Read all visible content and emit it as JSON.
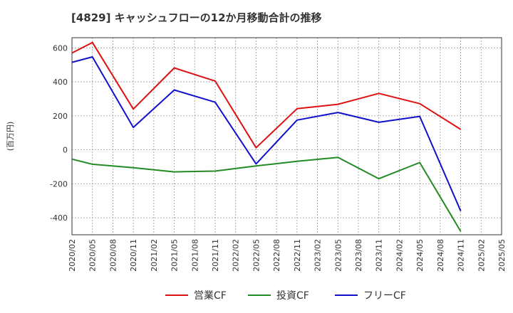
{
  "chart_data": {
    "type": "line",
    "title": "[4829]  キャッシュフローの12か月移動合計の推移",
    "ylabel": "(百万円)",
    "xlabel": "",
    "ylim": [
      -500,
      660
    ],
    "yticks": [
      -400,
      -200,
      0,
      200,
      400,
      600
    ],
    "x_ticks": [
      "2020/02",
      "2020/05",
      "2020/08",
      "2020/11",
      "2021/02",
      "2021/05",
      "2021/08",
      "2021/11",
      "2022/02",
      "2022/05",
      "2022/08",
      "2022/11",
      "2023/02",
      "2023/05",
      "2023/08",
      "2023/11",
      "2024/02",
      "2024/05",
      "2024/08",
      "2024/11",
      "2025/02",
      "2025/05"
    ],
    "grid": true,
    "legend_position": "bottom",
    "series": [
      {
        "name": "営業CF",
        "color": "#dd1111",
        "points": [
          [
            "2020/02",
            570
          ],
          [
            "2020/05",
            632
          ],
          [
            "2020/11",
            240
          ],
          [
            "2021/05",
            482
          ],
          [
            "2021/11",
            405
          ],
          [
            "2022/05",
            12
          ],
          [
            "2022/11",
            242
          ],
          [
            "2023/05",
            268
          ],
          [
            "2023/11",
            332
          ],
          [
            "2024/05",
            272
          ],
          [
            "2024/11",
            120
          ]
        ]
      },
      {
        "name": "投資CF",
        "color": "#228b22",
        "points": [
          [
            "2020/02",
            -55
          ],
          [
            "2020/05",
            -85
          ],
          [
            "2020/11",
            -105
          ],
          [
            "2021/05",
            -130
          ],
          [
            "2021/11",
            -125
          ],
          [
            "2022/05",
            -95
          ],
          [
            "2022/11",
            -68
          ],
          [
            "2023/05",
            -45
          ],
          [
            "2023/11",
            -170
          ],
          [
            "2024/05",
            -75
          ],
          [
            "2024/11",
            -480
          ]
        ]
      },
      {
        "name": "フリーCF",
        "color": "#1111cc",
        "points": [
          [
            "2020/02",
            515
          ],
          [
            "2020/05",
            547
          ],
          [
            "2020/11",
            132
          ],
          [
            "2021/05",
            352
          ],
          [
            "2021/11",
            280
          ],
          [
            "2022/05",
            -83
          ],
          [
            "2022/11",
            175
          ],
          [
            "2023/05",
            220
          ],
          [
            "2023/11",
            162
          ],
          [
            "2024/05",
            197
          ],
          [
            "2024/11",
            -360
          ]
        ]
      }
    ]
  }
}
